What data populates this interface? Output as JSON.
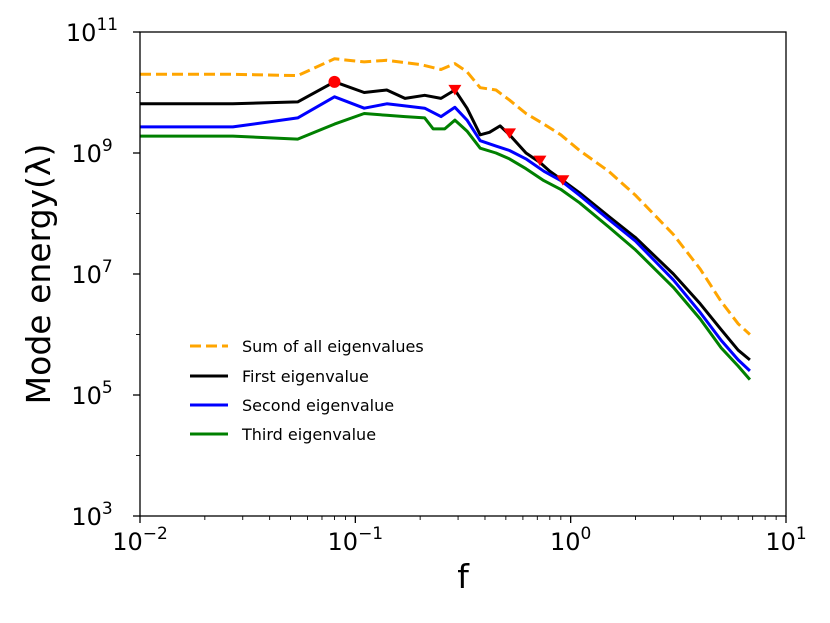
{
  "chart_data": {
    "type": "line",
    "title": "",
    "xlabel": "f",
    "ylabel": "Mode energy(λ)",
    "xscale": "log",
    "yscale": "log",
    "xlim": [
      0.01,
      10
    ],
    "ylim": [
      1000,
      100000000000
    ],
    "x_ticks": [
      {
        "base": "10",
        "exp": "−2",
        "value": 0.01
      },
      {
        "base": "10",
        "exp": "−1",
        "value": 0.1
      },
      {
        "base": "10",
        "exp": "0",
        "value": 1
      },
      {
        "base": "10",
        "exp": "1",
        "value": 10
      }
    ],
    "y_ticks": [
      {
        "base": "10",
        "exp": "3",
        "value": 1000
      },
      {
        "base": "10",
        "exp": "5",
        "value": 100000
      },
      {
        "base": "10",
        "exp": "7",
        "value": 10000000
      },
      {
        "base": "10",
        "exp": "9",
        "value": 1000000000
      },
      {
        "base": "10",
        "exp": "11",
        "value": 100000000000
      }
    ],
    "legend_position": "center-left",
    "series": [
      {
        "name": "Sum of all eigenvalues",
        "color": "#FFA500",
        "style": "dashed",
        "points": [
          [
            0.01,
            20000000000
          ],
          [
            0.027,
            20000000000
          ],
          [
            0.054,
            19000000000
          ],
          [
            0.08,
            36000000000
          ],
          [
            0.11,
            32000000000
          ],
          [
            0.14,
            34000000000
          ],
          [
            0.2,
            29000000000
          ],
          [
            0.25,
            24000000000
          ],
          [
            0.29,
            30000000000
          ],
          [
            0.33,
            22000000000
          ],
          [
            0.38,
            12000000000
          ],
          [
            0.45,
            11000000000
          ],
          [
            0.52,
            7500000000
          ],
          [
            0.62,
            4500000000
          ],
          [
            0.75,
            3000000000
          ],
          [
            0.9,
            2000000000
          ],
          [
            1.1,
            1100000000
          ],
          [
            1.5,
            500000000
          ],
          [
            2,
            200000000
          ],
          [
            3,
            45000000
          ],
          [
            4,
            12000000
          ],
          [
            5,
            3500000
          ],
          [
            6,
            1500000
          ],
          [
            6.8,
            1000000
          ]
        ]
      },
      {
        "name": "First eigenvalue",
        "color": "#000000",
        "style": "solid",
        "points": [
          [
            0.01,
            6500000000
          ],
          [
            0.027,
            6500000000
          ],
          [
            0.054,
            7000000000
          ],
          [
            0.08,
            15000000000
          ],
          [
            0.11,
            10000000000
          ],
          [
            0.14,
            11000000000
          ],
          [
            0.17,
            8000000000
          ],
          [
            0.21,
            9000000000
          ],
          [
            0.25,
            8000000000
          ],
          [
            0.29,
            11000000000
          ],
          [
            0.33,
            5500000000
          ],
          [
            0.38,
            2000000000
          ],
          [
            0.42,
            2200000000
          ],
          [
            0.47,
            2800000000
          ],
          [
            0.52,
            2000000000
          ],
          [
            0.62,
            1000000000
          ],
          [
            0.72,
            700000000
          ],
          [
            0.8,
            500000000
          ],
          [
            0.92,
            350000000
          ],
          [
            1.1,
            220000000
          ],
          [
            1.5,
            90000000
          ],
          [
            2,
            40000000
          ],
          [
            3,
            10000000
          ],
          [
            4,
            3200000
          ],
          [
            5,
            1200000
          ],
          [
            6,
            550000
          ],
          [
            6.8,
            380000
          ]
        ]
      },
      {
        "name": "Second eigenvalue",
        "color": "#0000FF",
        "style": "solid",
        "points": [
          [
            0.01,
            2700000000
          ],
          [
            0.027,
            2700000000
          ],
          [
            0.054,
            3800000000
          ],
          [
            0.08,
            8500000000
          ],
          [
            0.11,
            5500000000
          ],
          [
            0.14,
            6500000000
          ],
          [
            0.17,
            6000000000
          ],
          [
            0.21,
            5500000000
          ],
          [
            0.25,
            4000000000
          ],
          [
            0.29,
            5700000000
          ],
          [
            0.33,
            3500000000
          ],
          [
            0.38,
            1600000000
          ],
          [
            0.45,
            1300000000
          ],
          [
            0.52,
            1100000000
          ],
          [
            0.62,
            800000000
          ],
          [
            0.75,
            500000000
          ],
          [
            0.9,
            350000000
          ],
          [
            1.1,
            200000000
          ],
          [
            1.5,
            80000000
          ],
          [
            2,
            35000000
          ],
          [
            3,
            8000000
          ],
          [
            4,
            2300000
          ],
          [
            5,
            800000
          ],
          [
            6,
            380000
          ],
          [
            6.8,
            250000
          ]
        ]
      },
      {
        "name": "Third eigenvalue",
        "color": "#008000",
        "style": "solid",
        "points": [
          [
            0.01,
            1900000000
          ],
          [
            0.027,
            1900000000
          ],
          [
            0.054,
            1700000000
          ],
          [
            0.08,
            3000000000
          ],
          [
            0.11,
            4500000000
          ],
          [
            0.14,
            4200000000
          ],
          [
            0.17,
            4000000000
          ],
          [
            0.21,
            3800000000
          ],
          [
            0.23,
            2500000000
          ],
          [
            0.26,
            2500000000
          ],
          [
            0.29,
            3500000000
          ],
          [
            0.33,
            2300000000
          ],
          [
            0.38,
            1200000000
          ],
          [
            0.45,
            1000000000
          ],
          [
            0.52,
            800000000
          ],
          [
            0.62,
            550000000
          ],
          [
            0.75,
            350000000
          ],
          [
            0.9,
            250000000
          ],
          [
            1.1,
            150000000
          ],
          [
            1.5,
            60000000
          ],
          [
            2,
            25000000
          ],
          [
            3,
            6000000
          ],
          [
            4,
            1800000
          ],
          [
            5,
            600000
          ],
          [
            6,
            300000
          ],
          [
            6.8,
            180000
          ]
        ]
      }
    ],
    "markers": [
      {
        "shape": "circle",
        "color": "#FF0000",
        "x": 0.08,
        "y": 15000000000
      },
      {
        "shape": "triangle",
        "color": "#FF0000",
        "x": 0.29,
        "y": 11500000000
      },
      {
        "shape": "triangle",
        "color": "#FF0000",
        "x": 0.52,
        "y": 2200000000
      },
      {
        "shape": "triangle",
        "color": "#FF0000",
        "x": 0.72,
        "y": 780000000
      },
      {
        "shape": "triangle",
        "color": "#FF0000",
        "x": 0.92,
        "y": 370000000
      }
    ]
  }
}
